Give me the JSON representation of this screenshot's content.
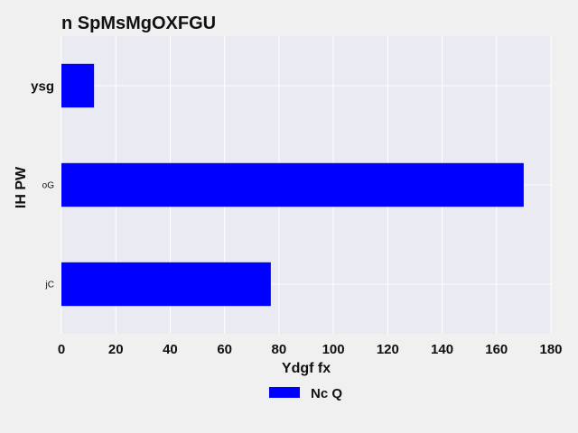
{
  "chart_data": {
    "type": "bar",
    "orientation": "horizontal",
    "title": "n SpMsMgOXFGU",
    "xlabel": "Ydgf fx",
    "ylabel": "IH PW",
    "categories": [
      "ysg",
      "oG",
      "jC"
    ],
    "series": [
      {
        "name": "Nc Q",
        "values": [
          12,
          170,
          77
        ],
        "color": "#0000ff"
      }
    ],
    "xlim": [
      0,
      180
    ],
    "xticks": [
      0,
      20,
      40,
      60,
      80,
      100,
      120,
      140,
      160,
      180
    ],
    "grid": true,
    "legend_position": "bottom-center",
    "plot_background": "#eaeaf2"
  }
}
